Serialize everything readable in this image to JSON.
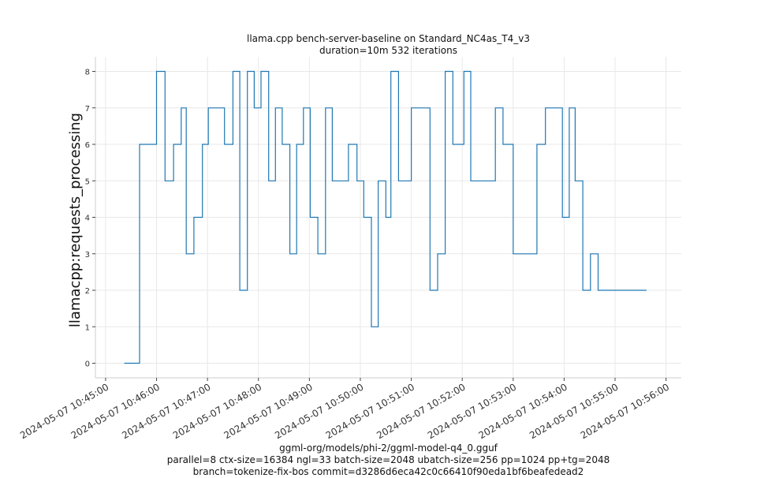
{
  "chart_data": {
    "type": "line",
    "title": "llama.cpp bench-server-baseline on Standard_NC4as_T4_v3",
    "subtitle": "duration=10m 532 iterations",
    "ylabel": "llamacpp:requests_processing",
    "xlabel_lines": [
      "ggml-org/models/phi-2/ggml-model-q4_0.gguf",
      "parallel=8 ctx-size=16384 ngl=33 batch-size=2048 ubatch-size=256 pp=1024 pp+tg=2048",
      "branch=tokenize-fix-bos commit=d3286d6eca42c0c66410f90eda1bf6beafedead2"
    ],
    "x_start": "2024-05-07 10:45:00",
    "xlim_minutes": [
      -0.2,
      11.3
    ],
    "ylim": [
      -0.4,
      8.4
    ],
    "yticks": [
      0,
      1,
      2,
      3,
      4,
      5,
      6,
      7,
      8
    ],
    "xticks": [
      "2024-05-07 10:45:00",
      "2024-05-07 10:46:00",
      "2024-05-07 10:47:00",
      "2024-05-07 10:48:00",
      "2024-05-07 10:49:00",
      "2024-05-07 10:50:00",
      "2024-05-07 10:51:00",
      "2024-05-07 10:52:00",
      "2024-05-07 10:53:00",
      "2024-05-07 10:54:00",
      "2024-05-07 10:55:00",
      "2024-05-07 10:56:00"
    ],
    "grid": true,
    "line_color": "#1f77b4",
    "series": [
      {
        "x": [
          "10:45:22",
          "10:45:40",
          "10:45:40",
          "10:46:00",
          "10:46:00",
          "10:46:10",
          "10:46:10",
          "10:46:20",
          "10:46:20",
          "10:46:29",
          "10:46:29",
          "10:46:35",
          "10:46:35",
          "10:46:44",
          "10:46:44",
          "10:46:54",
          "10:46:54",
          "10:47:01",
          "10:47:01",
          "10:47:20",
          "10:47:20",
          "10:47:30",
          "10:47:30",
          "10:47:38",
          "10:47:38",
          "10:47:47",
          "10:47:47",
          "10:47:55",
          "10:47:55",
          "10:48:03",
          "10:48:03",
          "10:48:12",
          "10:48:12",
          "10:48:20",
          "10:48:20",
          "10:48:28",
          "10:48:28",
          "10:48:37",
          "10:48:37",
          "10:48:45",
          "10:48:45",
          "10:48:53",
          "10:48:53",
          "10:49:01",
          "10:49:01",
          "10:49:10",
          "10:49:10",
          "10:49:19",
          "10:49:19",
          "10:49:27",
          "10:49:27",
          "10:49:46",
          "10:49:46",
          "10:49:56",
          "10:49:56",
          "10:50:04",
          "10:50:04",
          "10:50:13",
          "10:50:13",
          "10:50:21",
          "10:50:21",
          "10:50:30",
          "10:50:30",
          "10:50:36",
          "10:50:36",
          "10:50:45",
          "10:50:45",
          "10:51:00",
          "10:51:00",
          "10:51:22",
          "10:51:22",
          "10:51:31",
          "10:51:31",
          "10:51:40",
          "10:51:40",
          "10:51:49",
          "10:51:49",
          "10:52:02",
          "10:52:02",
          "10:52:10",
          "10:52:10",
          "10:52:39",
          "10:52:39",
          "10:52:48",
          "10:52:48",
          "10:53:00",
          "10:53:00",
          "10:53:28",
          "10:53:28",
          "10:53:38",
          "10:53:38",
          "10:53:58",
          "10:53:58",
          "10:54:06",
          "10:54:06",
          "10:54:13",
          "10:54:13",
          "10:54:22",
          "10:54:22",
          "10:54:31",
          "10:54:31",
          "10:54:40",
          "10:54:40",
          "10:54:47",
          "10:54:47",
          "10:54:56",
          "10:54:56",
          "10:55:14",
          "10:55:14",
          "10:55:21",
          "10:55:21",
          "10:55:32",
          "10:55:32",
          "10:55:37"
        ],
        "y": [
          0,
          0,
          6,
          6,
          8,
          8,
          5,
          5,
          6,
          6,
          7,
          7,
          3,
          3,
          4,
          4,
          6,
          6,
          7,
          7,
          6,
          6,
          8,
          8,
          2,
          2,
          8,
          8,
          7,
          7,
          8,
          8,
          5,
          5,
          7,
          7,
          6,
          6,
          3,
          3,
          6,
          6,
          7,
          7,
          4,
          4,
          3,
          3,
          7,
          7,
          5,
          5,
          6,
          6,
          5,
          5,
          4,
          4,
          1,
          1,
          5,
          5,
          4,
          4,
          8,
          8,
          5,
          5,
          7,
          7,
          2,
          2,
          3,
          3,
          8,
          8,
          6,
          6,
          8,
          8,
          5,
          5,
          7,
          7,
          6,
          6,
          3,
          3,
          6,
          6,
          7,
          7,
          4,
          4,
          7,
          7,
          5,
          5,
          2,
          2,
          3,
          3,
          2,
          2,
          2,
          2,
          2,
          2,
          2,
          2,
          2,
          2,
          2,
          2
        ]
      }
    ]
  }
}
